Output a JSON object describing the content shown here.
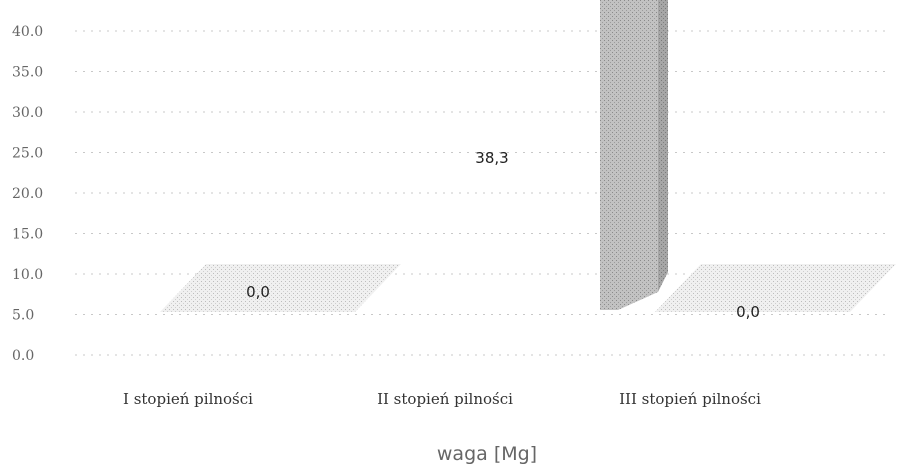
{
  "chart_data": {
    "type": "bar",
    "categories": [
      "I stopień pilności",
      "II stopień pilności",
      "III stopień pilności"
    ],
    "values": [
      0.0,
      38.3,
      0.0
    ],
    "data_labels": [
      "0,0",
      "38,3",
      "0,0"
    ],
    "yticks": [
      "0.0",
      "5.0",
      "10.0",
      "15.0",
      "20.0",
      "25.0",
      "30.0",
      "35.0",
      "40.0"
    ],
    "ylim": [
      0,
      40
    ],
    "xlabel": "waga [Mg]",
    "ylabel": "",
    "title": "",
    "grid": true,
    "legend": "none",
    "three_d": true,
    "colors": {
      "bar": "#9a9a9a",
      "floor": "#d6d6d6",
      "grid": "#c8c8c8",
      "text": "#333333"
    }
  }
}
